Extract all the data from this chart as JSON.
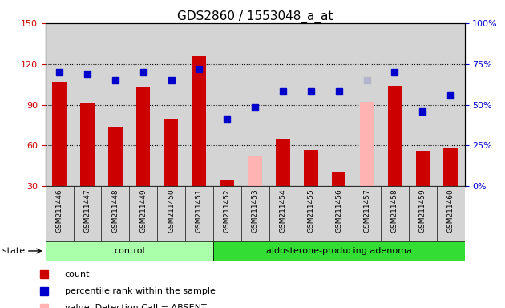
{
  "title": "GDS2860 / 1553048_a_at",
  "samples": [
    "GSM211446",
    "GSM211447",
    "GSM211448",
    "GSM211449",
    "GSM211450",
    "GSM211451",
    "GSM211452",
    "GSM211453",
    "GSM211454",
    "GSM211455",
    "GSM211456",
    "GSM211457",
    "GSM211458",
    "GSM211459",
    "GSM211460"
  ],
  "red_values": [
    107,
    91,
    74,
    103,
    80,
    126,
    35,
    null,
    65,
    57,
    40,
    null,
    104,
    56,
    58
  ],
  "blue_values": [
    114,
    113,
    108,
    114,
    108,
    116,
    80,
    88,
    100,
    100,
    100,
    null,
    114,
    85,
    97
  ],
  "pink_bar_values": [
    null,
    null,
    null,
    null,
    null,
    null,
    null,
    52,
    null,
    null,
    null,
    92,
    null,
    null,
    null
  ],
  "lavender_rank_values": [
    null,
    null,
    null,
    null,
    null,
    null,
    null,
    null,
    null,
    null,
    null,
    108,
    null,
    null,
    null
  ],
  "control_count": 6,
  "ylim_left": [
    30,
    150
  ],
  "yticks_left": [
    30,
    60,
    90,
    120,
    150
  ],
  "yticks_right": [
    0,
    25,
    50,
    75,
    100
  ],
  "bar_color": "#cc0000",
  "blue_color": "#0000cc",
  "pink_color": "#ffb3b3",
  "lavender_color": "#b3b3cc",
  "control_fill": "#aaffaa",
  "adenoma_fill": "#33dd33",
  "col_bg": "#d4d4d4",
  "bar_width": 0.5,
  "blue_marker_size": 6,
  "label_fontsize": 8,
  "title_fontsize": 11
}
